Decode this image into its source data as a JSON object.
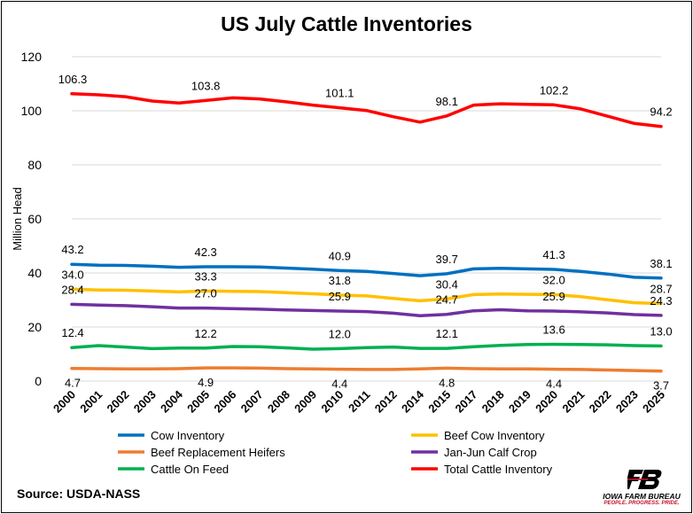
{
  "chart_data": {
    "type": "line",
    "title": "US July Cattle Inventories",
    "ylabel": "Million Head",
    "xlabel": "",
    "ylim": [
      0,
      120
    ],
    "yticks": [
      0,
      20,
      40,
      60,
      80,
      100,
      120
    ],
    "grid": "horizontal",
    "legend_position": "bottom",
    "x": [
      "2000",
      "2001",
      "2002",
      "2003",
      "2004",
      "2005",
      "2006",
      "2007",
      "2008",
      "2009",
      "2010",
      "2011",
      "2012",
      "2014",
      "2015",
      "2017",
      "2018",
      "2019",
      "2020",
      "2021",
      "2022",
      "2023",
      "2025"
    ],
    "series": [
      {
        "name": "Total Cattle Inventory",
        "color": "#ff0000",
        "values": [
          106.3,
          105.9,
          105.2,
          103.6,
          102.9,
          103.8,
          104.8,
          104.4,
          103.3,
          102.1,
          101.1,
          100.1,
          97.8,
          95.8,
          98.1,
          102.1,
          102.6,
          102.4,
          102.2,
          100.7,
          98.0,
          95.3,
          94.2
        ],
        "labels": [
          {
            "i": 0,
            "text": "106.3"
          },
          {
            "i": 5,
            "text": "103.8"
          },
          {
            "i": 10,
            "text": "101.1"
          },
          {
            "i": 14,
            "text": "98.1"
          },
          {
            "i": 18,
            "text": "102.2"
          },
          {
            "i": 22,
            "text": "94.2"
          }
        ]
      },
      {
        "name": "Cow Inventory",
        "color": "#0070c0",
        "values": [
          43.2,
          42.9,
          42.8,
          42.5,
          42.1,
          42.3,
          42.3,
          42.2,
          41.8,
          41.4,
          40.9,
          40.6,
          39.8,
          39.0,
          39.7,
          41.5,
          41.7,
          41.5,
          41.3,
          40.6,
          39.6,
          38.4,
          38.1
        ],
        "labels": [
          {
            "i": 0,
            "text": "43.2"
          },
          {
            "i": 5,
            "text": "42.3"
          },
          {
            "i": 10,
            "text": "40.9"
          },
          {
            "i": 14,
            "text": "39.7"
          },
          {
            "i": 18,
            "text": "41.3"
          },
          {
            "i": 22,
            "text": "38.1"
          }
        ]
      },
      {
        "name": "Beef Cow Inventory",
        "color": "#ffc000",
        "values": [
          34.0,
          33.7,
          33.6,
          33.3,
          33.0,
          33.3,
          33.2,
          33.1,
          32.7,
          32.3,
          31.8,
          31.5,
          30.6,
          29.7,
          30.4,
          32.0,
          32.2,
          32.1,
          32.0,
          31.2,
          30.1,
          29.0,
          28.7
        ],
        "labels": [
          {
            "i": 0,
            "text": "34.0"
          },
          {
            "i": 5,
            "text": "33.3"
          },
          {
            "i": 10,
            "text": "31.8"
          },
          {
            "i": 14,
            "text": "30.4"
          },
          {
            "i": 18,
            "text": "32.0"
          },
          {
            "i": 22,
            "text": "28.7"
          }
        ]
      },
      {
        "name": "Jan-Jun Calf Crop",
        "color": "#7030a0",
        "values": [
          28.4,
          28.1,
          27.9,
          27.5,
          27.0,
          27.0,
          26.8,
          26.6,
          26.3,
          26.1,
          25.9,
          25.7,
          25.1,
          24.2,
          24.7,
          26.0,
          26.4,
          26.0,
          25.9,
          25.6,
          25.2,
          24.6,
          24.3
        ],
        "labels": [
          {
            "i": 0,
            "text": "28.4"
          },
          {
            "i": 5,
            "text": "27.0"
          },
          {
            "i": 10,
            "text": "25.9"
          },
          {
            "i": 14,
            "text": "24.7"
          },
          {
            "i": 18,
            "text": "25.9"
          },
          {
            "i": 22,
            "text": "24.3"
          }
        ]
      },
      {
        "name": "Cattle On Feed",
        "color": "#00b050",
        "values": [
          12.4,
          13.1,
          12.6,
          12.0,
          12.2,
          12.2,
          12.8,
          12.7,
          12.3,
          11.8,
          12.0,
          12.4,
          12.6,
          12.1,
          12.1,
          12.7,
          13.2,
          13.5,
          13.6,
          13.5,
          13.4,
          13.1,
          13.0
        ],
        "labels": [
          {
            "i": 0,
            "text": "12.4"
          },
          {
            "i": 5,
            "text": "12.2"
          },
          {
            "i": 10,
            "text": "12.0"
          },
          {
            "i": 14,
            "text": "12.1"
          },
          {
            "i": 18,
            "text": "13.6"
          },
          {
            "i": 22,
            "text": "13.0"
          }
        ]
      },
      {
        "name": "Beef Replacement Heifers",
        "color": "#ed7d31",
        "values": [
          4.7,
          4.6,
          4.5,
          4.5,
          4.6,
          4.9,
          4.9,
          4.8,
          4.6,
          4.5,
          4.4,
          4.3,
          4.3,
          4.5,
          4.8,
          4.6,
          4.5,
          4.5,
          4.4,
          4.3,
          4.1,
          3.9,
          3.7
        ],
        "labels": [
          {
            "i": 0,
            "text": "4.7"
          },
          {
            "i": 5,
            "text": "4.9"
          },
          {
            "i": 10,
            "text": "4.4"
          },
          {
            "i": 14,
            "text": "4.8"
          },
          {
            "i": 18,
            "text": "4.4"
          },
          {
            "i": 22,
            "text": "3.7"
          }
        ]
      }
    ],
    "legend": [
      {
        "name": "Cow Inventory",
        "color": "#0070c0"
      },
      {
        "name": "Beef Cow Inventory",
        "color": "#ffc000"
      },
      {
        "name": "Beef Replacement Heifers",
        "color": "#ed7d31"
      },
      {
        "name": "Jan-Jun Calf Crop",
        "color": "#7030a0"
      },
      {
        "name": "Cattle On Feed",
        "color": "#00b050"
      },
      {
        "name": "Total Cattle Inventory",
        "color": "#ff0000"
      }
    ]
  },
  "source": "Source: USDA-NASS",
  "logo": {
    "name": "IOWA FARM BUREAU",
    "tagline": "PEOPLE. PROGRESS. PRIDE.",
    "color": "#000000",
    "accent": "#c8102e",
    "icon": "farm-bureau-fb-logo-icon"
  }
}
